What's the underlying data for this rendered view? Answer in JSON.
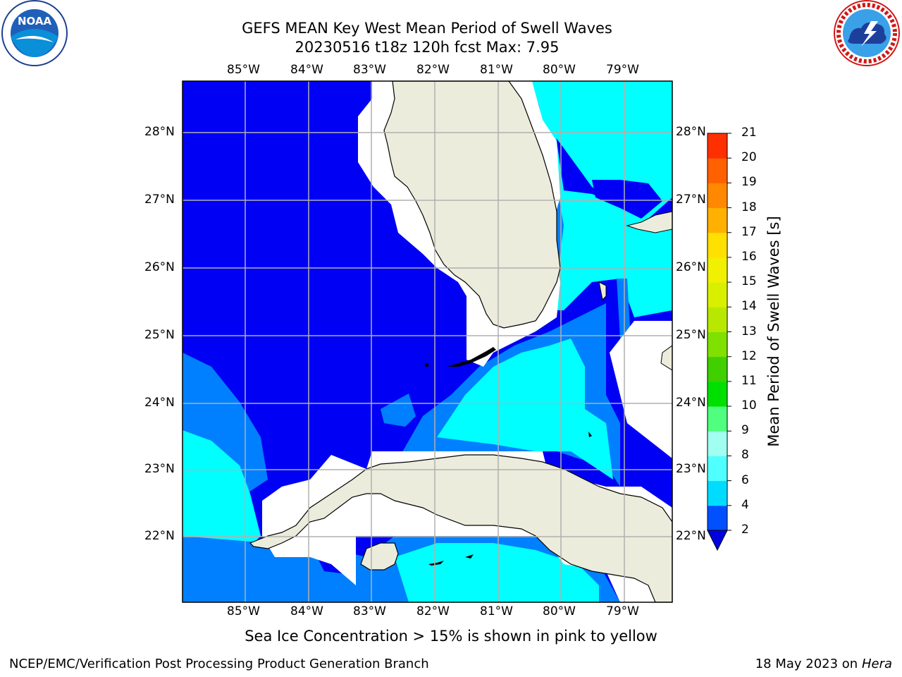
{
  "header": {
    "title_line1": "GEFS MEAN Key West Mean Period of Swell Waves",
    "title_line2": "20230516 t18z 120h fcst   Max: 7.95"
  },
  "logos": {
    "left": {
      "name": "NOAA",
      "text": "NOAA",
      "ring_text": "NATIONAL OCEANIC AND ATMOSPHERIC ADMINISTRATION · U.S. DEPARTMENT OF COMMERCE"
    },
    "right": {
      "name": "National Weather Service",
      "ring_text": "NATIONAL WEATHER SERVICE"
    }
  },
  "map": {
    "lon_labels": [
      "85°W",
      "84°W",
      "83°W",
      "82°W",
      "81°W",
      "80°W",
      "79°W"
    ],
    "lat_labels": [
      "28°N",
      "27°N",
      "26°N",
      "25°N",
      "24°N",
      "23°N",
      "22°N"
    ],
    "extent": {
      "lon_min": -86.0,
      "lon_max": -78.25,
      "lat_min": 21.0,
      "lat_max": 28.75
    },
    "colors": {
      "land": "#ececdc",
      "coast": "#000000",
      "grid": "#b0b0b0",
      "ocean_2_4": "#0000f5",
      "ocean_4_6": "#0080ff",
      "ocean_6_8": "#00ffff",
      "ocean_8_9": "#50ffff",
      "missing": "#ffffff"
    }
  },
  "colorbar": {
    "title": "Mean Period of Swell Waves [s]",
    "ticks": [
      "2",
      "4",
      "6",
      "8",
      "9",
      "10",
      "11",
      "12",
      "13",
      "14",
      "15",
      "16",
      "17",
      "18",
      "19",
      "20",
      "21"
    ],
    "colors": [
      "#0050ff",
      "#00dcff",
      "#50ffff",
      "#a0fff0",
      "#50ff80",
      "#00e000",
      "#40d000",
      "#80e000",
      "#b8e800",
      "#d8f000",
      "#f0f000",
      "#ffe000",
      "#ffb000",
      "#ff8800",
      "#ff6000",
      "#ff3000"
    ],
    "under_color": "#0000e0"
  },
  "footer": {
    "note": "Sea Ice Concentration > 15% is shown in pink to yellow",
    "credit": "NCEP/EMC/Verification Post Processing Product Generation Branch",
    "date": "18 May 2023 on",
    "machine": "Hera"
  }
}
